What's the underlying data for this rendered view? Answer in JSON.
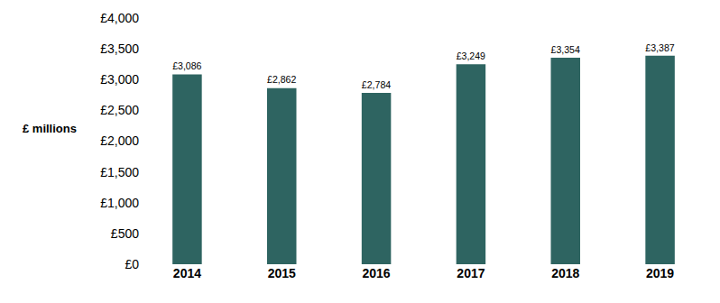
{
  "chart_data": {
    "type": "bar",
    "y_label": "£ millions",
    "categories": [
      "2014",
      "2015",
      "2016",
      "2017",
      "2018",
      "2019"
    ],
    "values": [
      3086,
      2862,
      2784,
      3249,
      3354,
      3387
    ],
    "value_labels": [
      "£3,086",
      "£2,862",
      "£2,784",
      "£3,249",
      "£3,354",
      "£3,387"
    ],
    "color": "#2e6461",
    "ylim": [
      0,
      4000
    ],
    "yticks": [
      {
        "value": 0,
        "label": "£0"
      },
      {
        "value": 500,
        "label": "£500"
      },
      {
        "value": 1000,
        "label": "£1,000"
      },
      {
        "value": 1500,
        "label": "£1,500"
      },
      {
        "value": 2000,
        "label": "£2,000"
      },
      {
        "value": 2500,
        "label": "£2,500"
      },
      {
        "value": 3000,
        "label": "£3,000"
      },
      {
        "value": 3500,
        "label": "£3,500"
      },
      {
        "value": 4000,
        "label": "£4,000"
      }
    ],
    "grid": false,
    "data_labels": true
  }
}
